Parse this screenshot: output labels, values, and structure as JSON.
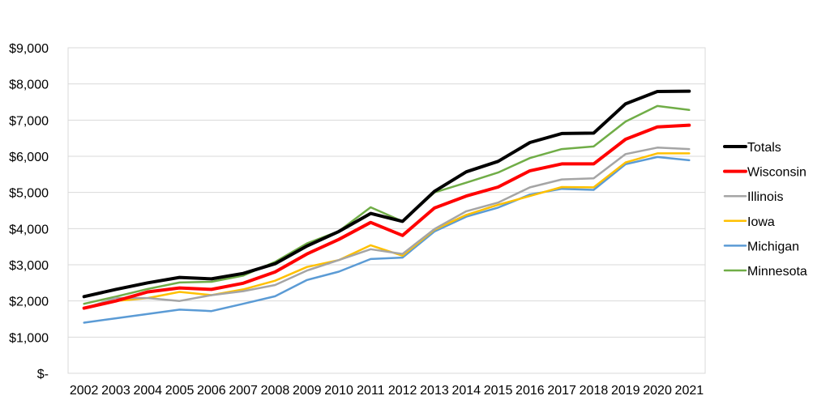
{
  "chart_data": {
    "type": "line",
    "title": "",
    "xlabel": "",
    "ylabel": "",
    "x": [
      "2002",
      "2003",
      "2004",
      "2005",
      "2006",
      "2007",
      "2008",
      "2009",
      "2010",
      "2011",
      "2012",
      "2013",
      "2014",
      "2015",
      "2016",
      "2017",
      "2018",
      "2019",
      "2020",
      "2021"
    ],
    "ylim": [
      0,
      9000
    ],
    "yticks": [
      0,
      1000,
      2000,
      3000,
      4000,
      5000,
      6000,
      7000,
      8000,
      9000
    ],
    "ytick_labels": [
      "$-",
      "$1,000",
      "$2,000",
      "$3,000",
      "$4,000",
      "$5,000",
      "$6,000",
      "$7,000",
      "$8,000",
      "$9,000"
    ],
    "grid": true,
    "legend_position": "right",
    "series": [
      {
        "name": "Totals",
        "color": "#000000",
        "values": [
          2120,
          2320,
          2500,
          2650,
          2610,
          2760,
          3030,
          3520,
          3920,
          4420,
          4200,
          5030,
          5570,
          5860,
          6380,
          6630,
          6640,
          7450,
          7790,
          7800
        ]
      },
      {
        "name": "Wisconsin",
        "color": "#ff0000",
        "values": [
          1800,
          2000,
          2250,
          2360,
          2320,
          2490,
          2800,
          3300,
          3700,
          4170,
          3810,
          4570,
          4900,
          5150,
          5600,
          5790,
          5790,
          6470,
          6810,
          6860
        ]
      },
      {
        "name": "Illinois",
        "color": "#a5a5a5",
        "values": [
          1790,
          2080,
          2080,
          2000,
          2160,
          2270,
          2440,
          2840,
          3130,
          3430,
          3300,
          3990,
          4480,
          4720,
          5140,
          5360,
          5390,
          6060,
          6240,
          6200
        ]
      },
      {
        "name": "Iowa",
        "color": "#ffc000",
        "values": [
          1800,
          2000,
          2080,
          2250,
          2160,
          2320,
          2560,
          2940,
          3130,
          3540,
          3250,
          3970,
          4380,
          4660,
          4900,
          5150,
          5140,
          5830,
          6080,
          6080
        ]
      },
      {
        "name": "Michigan",
        "color": "#5b9bd5",
        "values": [
          1400,
          1520,
          1640,
          1760,
          1720,
          1920,
          2130,
          2580,
          2810,
          3160,
          3200,
          3920,
          4330,
          4580,
          4940,
          5100,
          5070,
          5780,
          5980,
          5890
        ]
      },
      {
        "name": "Minnesota",
        "color": "#70ad47",
        "values": [
          1920,
          2120,
          2330,
          2510,
          2530,
          2700,
          3080,
          3590,
          3930,
          4590,
          4200,
          5000,
          5270,
          5550,
          5950,
          6200,
          6270,
          6960,
          7390,
          7280
        ]
      }
    ]
  }
}
